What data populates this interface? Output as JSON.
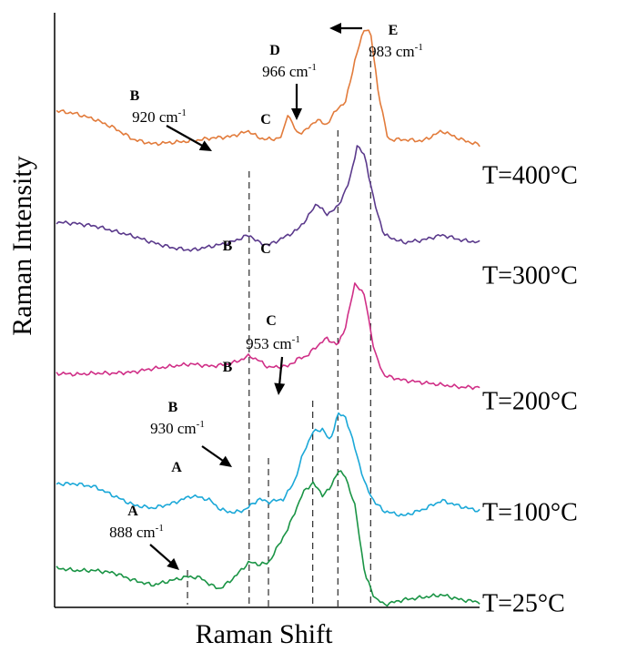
{
  "chart_data": {
    "type": "line",
    "xlabel": "Raman Shift",
    "ylabel": "Raman Intensity",
    "x_axis_range": [
      820,
      1040
    ],
    "series": [
      {
        "name": "T=400°C",
        "color": "#E27B3B",
        "points": [
          [
            820,
            0.42
          ],
          [
            830,
            0.4
          ],
          [
            840,
            0.36
          ],
          [
            850,
            0.3
          ],
          [
            860,
            0.22
          ],
          [
            870,
            0.19
          ],
          [
            880,
            0.2
          ],
          [
            890,
            0.21
          ],
          [
            900,
            0.23
          ],
          [
            910,
            0.24
          ],
          [
            920,
            0.28
          ],
          [
            925,
            0.23
          ],
          [
            932,
            0.22
          ],
          [
            937,
            0.24
          ],
          [
            940,
            0.4
          ],
          [
            945,
            0.26
          ],
          [
            950,
            0.29
          ],
          [
            955,
            0.36
          ],
          [
            960,
            0.32
          ],
          [
            966,
            0.44
          ],
          [
            970,
            0.48
          ],
          [
            975,
            0.78
          ],
          [
            980,
            1.0
          ],
          [
            983,
            0.96
          ],
          [
            987,
            0.55
          ],
          [
            992,
            0.22
          ],
          [
            1000,
            0.22
          ],
          [
            1010,
            0.21
          ],
          [
            1020,
            0.28
          ],
          [
            1030,
            0.22
          ],
          [
            1040,
            0.18
          ]
        ]
      },
      {
        "name": "T=300°C",
        "color": "#5B3A8C",
        "points": [
          [
            820,
            0.4
          ],
          [
            830,
            0.39
          ],
          [
            840,
            0.37
          ],
          [
            850,
            0.33
          ],
          [
            860,
            0.29
          ],
          [
            870,
            0.24
          ],
          [
            880,
            0.2
          ],
          [
            890,
            0.18
          ],
          [
            900,
            0.21
          ],
          [
            910,
            0.24
          ],
          [
            920,
            0.3
          ],
          [
            925,
            0.24
          ],
          [
            930,
            0.22
          ],
          [
            938,
            0.28
          ],
          [
            945,
            0.34
          ],
          [
            950,
            0.43
          ],
          [
            955,
            0.55
          ],
          [
            960,
            0.46
          ],
          [
            966,
            0.52
          ],
          [
            972,
            0.72
          ],
          [
            976,
            1.0
          ],
          [
            980,
            0.92
          ],
          [
            985,
            0.55
          ],
          [
            990,
            0.3
          ],
          [
            1000,
            0.24
          ],
          [
            1010,
            0.26
          ],
          [
            1020,
            0.3
          ],
          [
            1030,
            0.26
          ],
          [
            1040,
            0.24
          ]
        ]
      },
      {
        "name": "T=200°C",
        "color": "#D02F87",
        "points": [
          [
            820,
            0.22
          ],
          [
            830,
            0.21
          ],
          [
            840,
            0.22
          ],
          [
            850,
            0.22
          ],
          [
            860,
            0.23
          ],
          [
            870,
            0.26
          ],
          [
            880,
            0.28
          ],
          [
            890,
            0.3
          ],
          [
            900,
            0.28
          ],
          [
            910,
            0.3
          ],
          [
            915,
            0.33
          ],
          [
            920,
            0.37
          ],
          [
            925,
            0.33
          ],
          [
            930,
            0.27
          ],
          [
            940,
            0.28
          ],
          [
            945,
            0.34
          ],
          [
            950,
            0.37
          ],
          [
            955,
            0.45
          ],
          [
            960,
            0.52
          ],
          [
            966,
            0.46
          ],
          [
            970,
            0.62
          ],
          [
            975,
            1.0
          ],
          [
            980,
            0.88
          ],
          [
            985,
            0.4
          ],
          [
            990,
            0.2
          ],
          [
            1000,
            0.16
          ],
          [
            1010,
            0.14
          ],
          [
            1020,
            0.12
          ],
          [
            1030,
            0.1
          ],
          [
            1040,
            0.1
          ]
        ]
      },
      {
        "name": "T=100°C",
        "color": "#1BA8D8",
        "points": [
          [
            820,
            0.22
          ],
          [
            830,
            0.22
          ],
          [
            840,
            0.2
          ],
          [
            850,
            0.14
          ],
          [
            860,
            0.08
          ],
          [
            870,
            0.06
          ],
          [
            880,
            0.09
          ],
          [
            890,
            0.14
          ],
          [
            895,
            0.13
          ],
          [
            900,
            0.11
          ],
          [
            905,
            0.05
          ],
          [
            912,
            0.03
          ],
          [
            918,
            0.05
          ],
          [
            925,
            0.12
          ],
          [
            930,
            0.1
          ],
          [
            938,
            0.12
          ],
          [
            944,
            0.25
          ],
          [
            948,
            0.42
          ],
          [
            953,
            0.56
          ],
          [
            958,
            0.58
          ],
          [
            962,
            0.5
          ],
          [
            966,
            0.68
          ],
          [
            970,
            0.66
          ],
          [
            975,
            0.45
          ],
          [
            980,
            0.22
          ],
          [
            985,
            0.1
          ],
          [
            990,
            0.04
          ],
          [
            1000,
            0.01
          ],
          [
            1010,
            0.05
          ],
          [
            1020,
            0.11
          ],
          [
            1030,
            0.07
          ],
          [
            1040,
            0.04
          ]
        ]
      },
      {
        "name": "T=25°C",
        "color": "#1A9445",
        "points": [
          [
            820,
            0.3
          ],
          [
            830,
            0.28
          ],
          [
            840,
            0.28
          ],
          [
            850,
            0.26
          ],
          [
            860,
            0.2
          ],
          [
            870,
            0.16
          ],
          [
            880,
            0.2
          ],
          [
            888,
            0.23
          ],
          [
            895,
            0.22
          ],
          [
            900,
            0.16
          ],
          [
            905,
            0.13
          ],
          [
            912,
            0.22
          ],
          [
            920,
            0.35
          ],
          [
            925,
            0.33
          ],
          [
            930,
            0.34
          ],
          [
            940,
            0.62
          ],
          [
            948,
            0.92
          ],
          [
            953,
            1.0
          ],
          [
            958,
            0.9
          ],
          [
            962,
            0.95
          ],
          [
            966,
            1.1
          ],
          [
            970,
            1.05
          ],
          [
            975,
            0.8
          ],
          [
            980,
            0.25
          ],
          [
            985,
            0.06
          ],
          [
            990,
            0.0
          ],
          [
            1000,
            0.04
          ],
          [
            1010,
            0.06
          ],
          [
            1020,
            0.08
          ],
          [
            1030,
            0.04
          ],
          [
            1040,
            0.02
          ]
        ]
      }
    ],
    "peak_guides": [
      888,
      920,
      930,
      953,
      966,
      983
    ],
    "annotations": [
      {
        "letter": "A",
        "value": "888 cm-1",
        "series": "T=25°C"
      },
      {
        "letter": "A",
        "value": "",
        "series": "T=100°C"
      },
      {
        "letter": "B",
        "value": "930 cm-1",
        "series": "T=100°C"
      },
      {
        "letter": "B",
        "value": "",
        "series": "T=200°C"
      },
      {
        "letter": "C",
        "value": "953 cm-1",
        "series": "T=200°C"
      },
      {
        "letter": "B",
        "value": "",
        "series": "T=300°C"
      },
      {
        "letter": "C",
        "value": "",
        "series": "T=300°C"
      },
      {
        "letter": "B",
        "value": "920 cm-1",
        "series": "T=400°C"
      },
      {
        "letter": "C",
        "value": "",
        "series": "T=400°C"
      },
      {
        "letter": "D",
        "value": "966 cm-1",
        "series": "T=400°C"
      },
      {
        "letter": "E",
        "value": "983 cm-1",
        "series": "T=400°C"
      }
    ]
  }
}
